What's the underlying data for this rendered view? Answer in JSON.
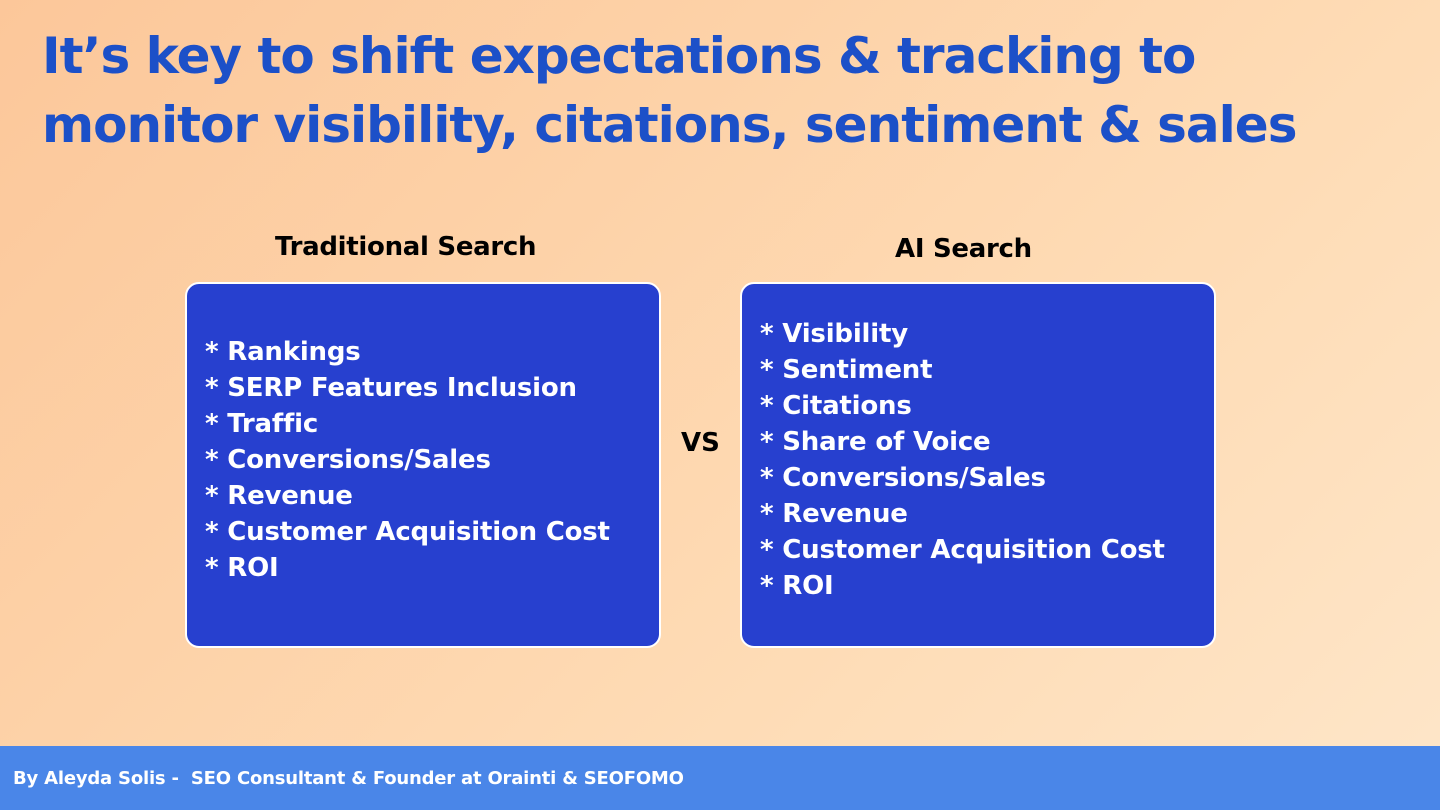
{
  "slide": {
    "title_lines": [
      "It’s key to shift expectations & tracking to",
      "monitor visibility, citations, sentiment & sales"
    ],
    "separator": "VS",
    "footer": "By Aleyda Solis -  SEO Consultant & Founder at Orainti & SEOFOMO"
  },
  "traditional": {
    "heading": "Traditional Search",
    "items": [
      "Rankings",
      "SERP Features Inclusion",
      "Traffic",
      "Conversions/Sales",
      "Revenue",
      "Customer Acquisition Cost",
      "ROI"
    ]
  },
  "ai": {
    "heading": "AI Search",
    "items": [
      "Visibility",
      "Sentiment",
      "Citations",
      "Share of Voice",
      "Conversions/Sales",
      "Revenue",
      "Customer Acquisition Cost",
      "ROI"
    ]
  },
  "colors": {
    "title": "#1c50c8",
    "box": "#2740cf",
    "footer": "#4a86e8"
  }
}
